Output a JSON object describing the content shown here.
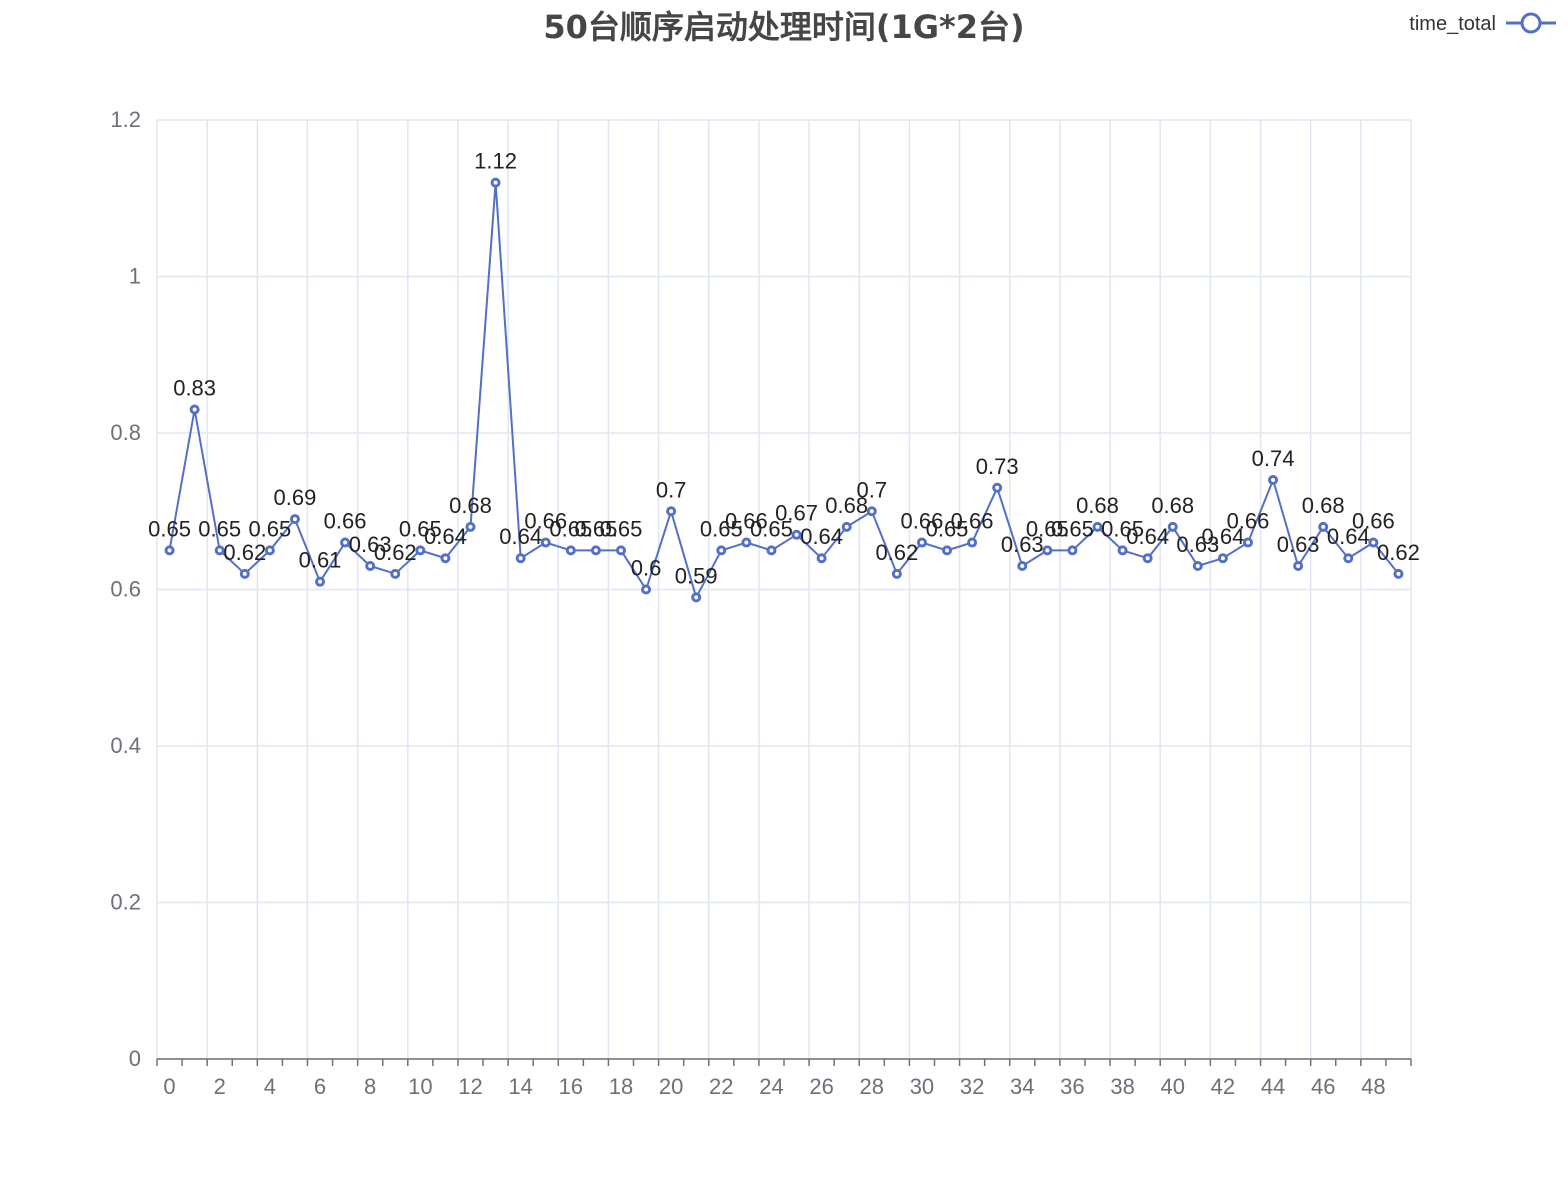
{
  "chart_data": {
    "type": "line",
    "title": "50台顺序启动处理时间(1G*2台)",
    "legend": {
      "position": "top-right",
      "entries": [
        "time_total"
      ]
    },
    "x": [
      0,
      1,
      2,
      3,
      4,
      5,
      6,
      7,
      8,
      9,
      10,
      11,
      12,
      13,
      14,
      15,
      16,
      17,
      18,
      19,
      20,
      21,
      22,
      23,
      24,
      25,
      26,
      27,
      28,
      29,
      30,
      31,
      32,
      33,
      34,
      35,
      36,
      37,
      38,
      39,
      40,
      41,
      42,
      43,
      44,
      45,
      46,
      47,
      48,
      49
    ],
    "x_tick_labels": [
      "0",
      "2",
      "4",
      "6",
      "8",
      "10",
      "12",
      "14",
      "16",
      "18",
      "20",
      "22",
      "24",
      "26",
      "28",
      "30",
      "32",
      "34",
      "36",
      "38",
      "40",
      "42",
      "44",
      "46",
      "48"
    ],
    "series": [
      {
        "name": "time_total",
        "color": "#5470c6",
        "values": [
          0.65,
          0.83,
          0.65,
          0.62,
          0.65,
          0.69,
          0.61,
          0.66,
          0.63,
          0.62,
          0.65,
          0.64,
          0.68,
          1.12,
          0.64,
          0.66,
          0.65,
          0.65,
          0.65,
          0.6,
          0.7,
          0.59,
          0.65,
          0.66,
          0.65,
          0.67,
          0.64,
          0.68,
          0.7,
          0.62,
          0.66,
          0.65,
          0.66,
          0.73,
          0.63,
          0.65,
          0.65,
          0.68,
          0.65,
          0.64,
          0.68,
          0.63,
          0.64,
          0.66,
          0.74,
          0.63,
          0.68,
          0.64,
          0.66,
          0.62
        ]
      }
    ],
    "ylim": [
      0,
      1.2
    ],
    "y_ticks": [
      "0",
      "0.2",
      "0.4",
      "0.6",
      "0.8",
      "1",
      "1.2"
    ],
    "grid": true
  }
}
